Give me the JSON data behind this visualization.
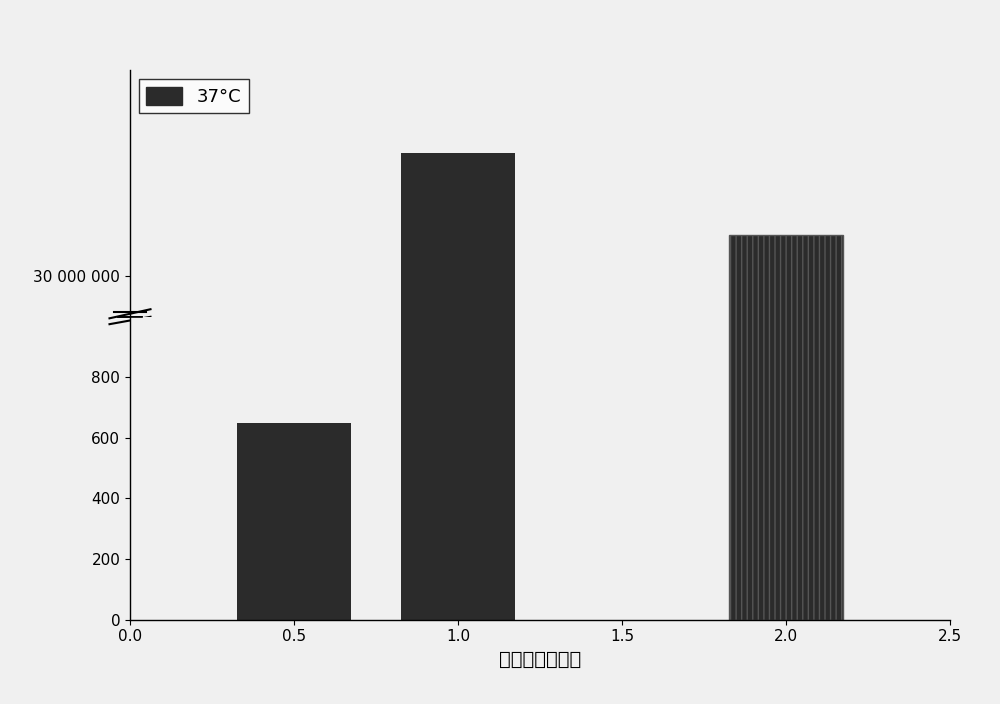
{
  "bar_positions": [
    0.5,
    1.0,
    2.0
  ],
  "bar_values": [
    650,
    33000000,
    31000000
  ],
  "bar_width": 0.35,
  "bar_color": "#2b2b2b",
  "bar_hatch": [
    null,
    null,
    "|||"
  ],
  "xlim": [
    0.0,
    2.5
  ],
  "ylim_lower": [
    0,
    1000
  ],
  "ylim_upper": [
    29000000,
    35000000
  ],
  "yticks_lower": [
    0,
    200,
    400,
    600,
    800
  ],
  "yticks_upper": [
    30000000
  ],
  "ytick_labels_upper": [
    "30 000 000"
  ],
  "xlabel": "培养时间（天）",
  "legend_label": "37°C",
  "xticks": [
    0.0,
    0.5,
    1.0,
    1.5,
    2.0,
    2.5
  ],
  "background_color": "#f0f0f0",
  "title": ""
}
